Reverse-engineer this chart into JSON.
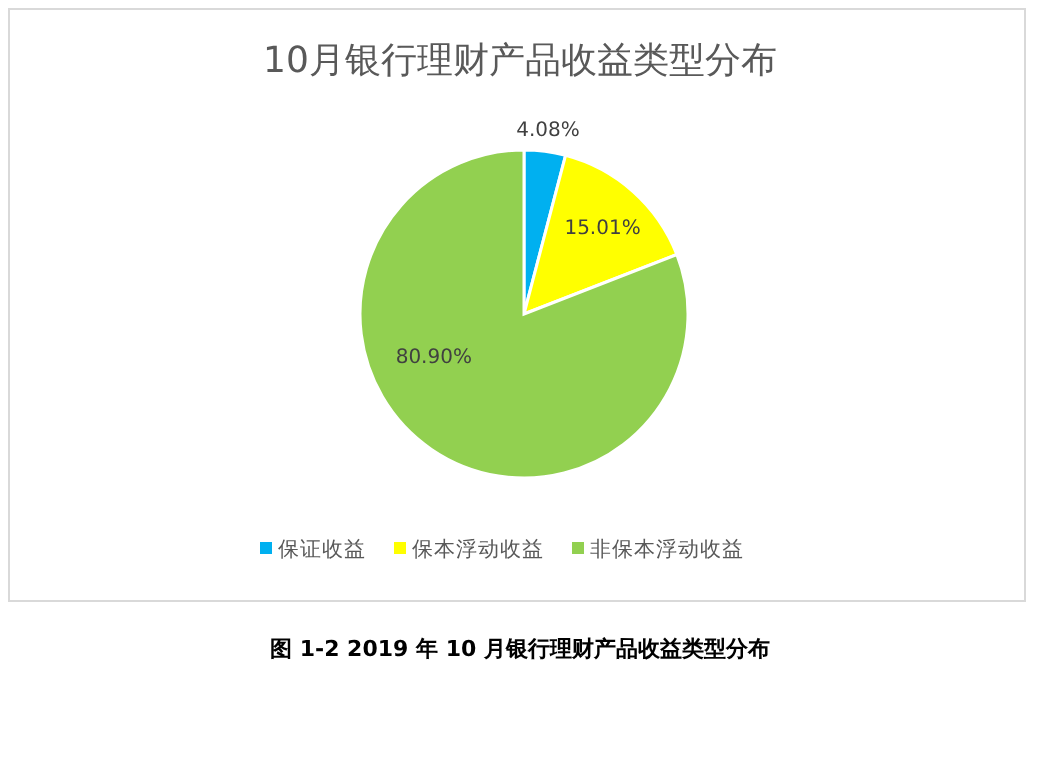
{
  "chart_data": {
    "type": "pie",
    "title": "10月银行理财产品收益类型分布",
    "categories": [
      "保证收益",
      "保本浮动收益",
      "非保本浮动收益"
    ],
    "values": [
      4.08,
      15.01,
      80.9
    ],
    "colors": [
      "#00b0f0",
      "#ffff00",
      "#92d050"
    ],
    "value_labels": [
      "4.08%",
      "15.01%",
      "80.90%"
    ],
    "legend": "bottom",
    "annotations": [
      "图 1-2 2019 年 10 月银行理财产品收益类型分布"
    ]
  }
}
